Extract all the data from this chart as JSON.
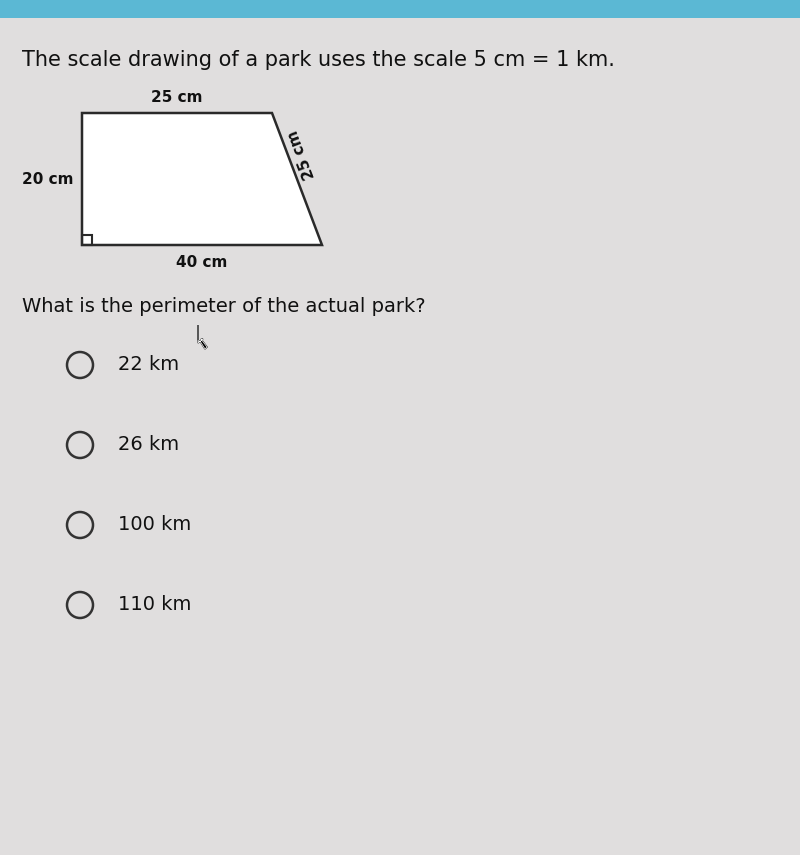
{
  "title_text": "The scale drawing of a park uses the scale 5 cm = 1 km.",
  "question_text": "What is the perimeter of the actual park?",
  "choices": [
    "22 km",
    "26 km",
    "100 km",
    "110 km"
  ],
  "header_bar_color": "#5bb8d4",
  "bg_color": "#e0dede",
  "shape_label_top": "25 cm",
  "shape_label_left": "20 cm",
  "shape_label_bottom": "40 cm",
  "shape_label_right": "25 cm",
  "shape_color": "#2a2a2a",
  "shape_fill": "#ffffff",
  "title_fontsize": 15,
  "question_fontsize": 14,
  "choice_fontsize": 14,
  "label_fontsize": 11
}
